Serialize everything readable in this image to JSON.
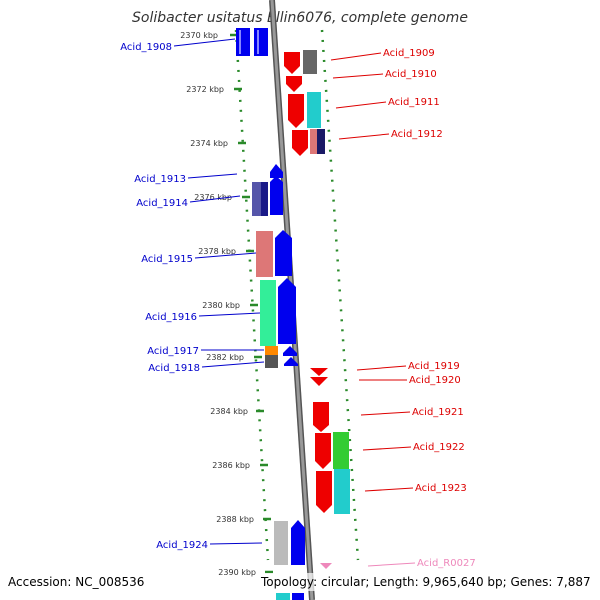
{
  "title": "Solibacter usitatus Ellin6076, complete genome",
  "accession": "Accession: NC_008536",
  "topology": "Topology: circular; Length: 9,965,640 bp; Genes: 7,887",
  "colors": {
    "label_left": "#0000cc",
    "label_right": "#dd0000",
    "label_rna": "#ee88bb",
    "backbone": "#888888",
    "dots": "#2a8a2a"
  },
  "ticks": [
    "2370 kbp",
    "2372 kbp",
    "2374 kbp",
    "2376 kbp",
    "2378 kbp",
    "2380 kbp",
    "2382 kbp",
    "2384 kbp",
    "2386 kbp",
    "2388 kbp",
    "2390 kbp"
  ],
  "labels_left": [
    "Acid_1908",
    "Acid_1913",
    "Acid_1914",
    "Acid_1915",
    "Acid_1916",
    "Acid_1917",
    "Acid_1918",
    "Acid_1924"
  ],
  "labels_right": [
    "Acid_1909",
    "Acid_1910",
    "Acid_1911",
    "Acid_1912",
    "Acid_1919",
    "Acid_1920",
    "Acid_1921",
    "Acid_1922",
    "Acid_1923"
  ],
  "labels_rna": [
    "Acid_R0027"
  ]
}
